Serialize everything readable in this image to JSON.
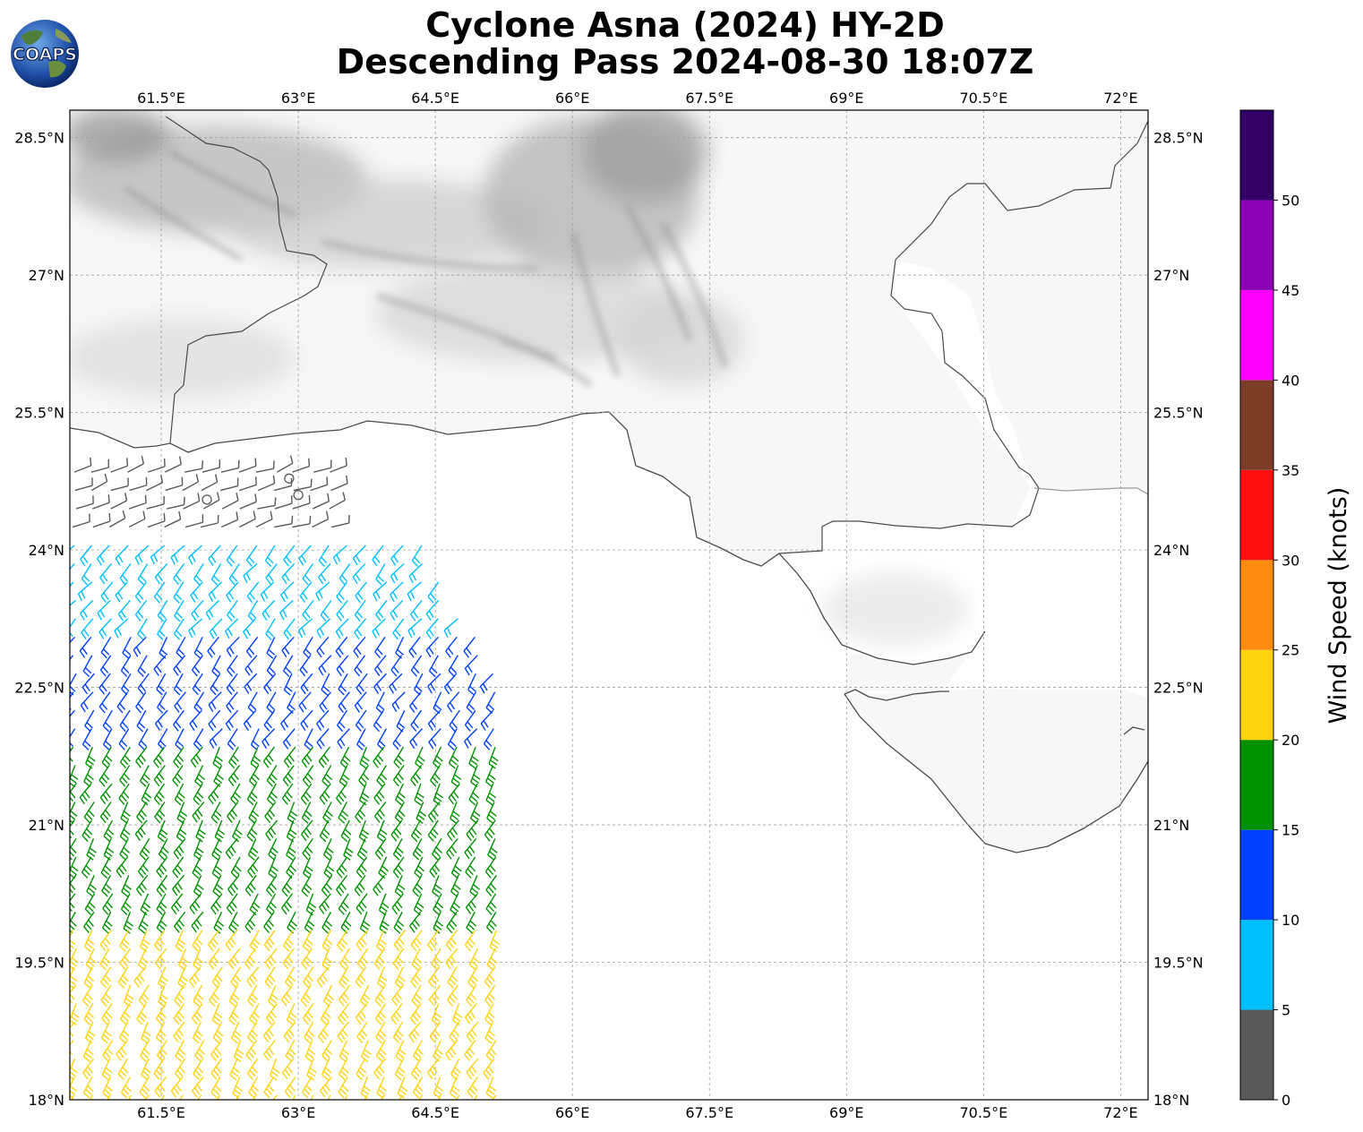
{
  "header": {
    "title_line1": "Cyclone Asna (2024) HY-2D",
    "title_line2": "Descending Pass 2024-08-30 18:07Z",
    "logo_text": "COAPS"
  },
  "map": {
    "lon_labels": [
      "61.5°E",
      "63°E",
      "64.5°E",
      "66°E",
      "67.5°E",
      "69°E",
      "70.5°E",
      "72°E"
    ],
    "lon_values": [
      61.5,
      63,
      64.5,
      66,
      67.5,
      69,
      70.5,
      72
    ],
    "lat_labels": [
      "28.5°N",
      "27°N",
      "25.5°N",
      "24°N",
      "22.5°N",
      "21°N",
      "19.5°N",
      "18°N"
    ],
    "lat_values": [
      28.5,
      27,
      25.5,
      24,
      22.5,
      21,
      19.5,
      18
    ],
    "lon_range": [
      60.5,
      72.3
    ],
    "lat_range": [
      18,
      28.8
    ],
    "gridlines": true
  },
  "colorbar": {
    "label": "Wind Speed (knots)",
    "tick_labels": [
      "0",
      "5",
      "10",
      "15",
      "20",
      "25",
      "30",
      "35",
      "40",
      "45",
      "50"
    ],
    "bins": [
      {
        "min": 0,
        "max": 5,
        "color": "#595959"
      },
      {
        "min": 5,
        "max": 10,
        "color": "#00bfff"
      },
      {
        "min": 10,
        "max": 15,
        "color": "#0040ff"
      },
      {
        "min": 15,
        "max": 20,
        "color": "#009100"
      },
      {
        "min": 20,
        "max": 25,
        "color": "#ffd30f"
      },
      {
        "min": 25,
        "max": 30,
        "color": "#ff8c0f"
      },
      {
        "min": 30,
        "max": 35,
        "color": "#ff0f0f"
      },
      {
        "min": 35,
        "max": 40,
        "color": "#7d3c28"
      },
      {
        "min": 40,
        "max": 45,
        "color": "#ff00ff"
      },
      {
        "min": 45,
        "max": 50,
        "color": "#8c00b4"
      },
      {
        "min": 50,
        "max": 55,
        "color": "#320064"
      }
    ]
  },
  "wind_swath": {
    "units": "knots",
    "colors": {
      "calm": "#595959",
      "c5": "#00bfff",
      "c10": "#0040ff",
      "c15": "#009100",
      "c20": "#ffd30f"
    },
    "regions": [
      {
        "lat_min": 23.8,
        "lat_max": 24.9,
        "speed": 3,
        "color": "#595959",
        "dir_deg": 20
      },
      {
        "lat_min": 22.9,
        "lat_max": 24.2,
        "speed": 8,
        "color": "#00bfff",
        "dir_deg": 230
      },
      {
        "lat_min": 21.4,
        "lat_max": 23.1,
        "speed": 12,
        "color": "#0040ff",
        "dir_deg": 235
      },
      {
        "lat_min": 19.5,
        "lat_max": 21.9,
        "speed": 17,
        "color": "#009100",
        "dir_deg": 240
      },
      {
        "lat_min": 18.0,
        "lat_max": 20.0,
        "speed": 22,
        "color": "#ffd30f",
        "dir_deg": 240
      }
    ]
  }
}
